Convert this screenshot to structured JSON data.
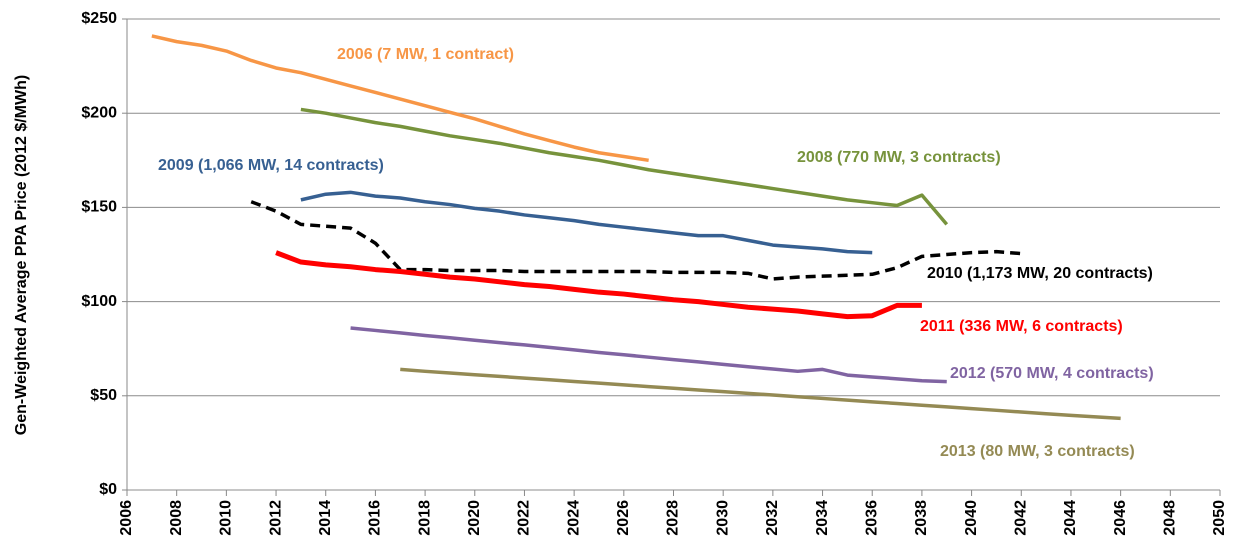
{
  "chart_data": {
    "type": "line",
    "y_label": "Gen-Weighted Average PPA Price (2012 $/MWh)",
    "xlim": [
      2006,
      2050
    ],
    "xticks": [
      2006,
      2008,
      2010,
      2012,
      2014,
      2016,
      2018,
      2020,
      2022,
      2024,
      2026,
      2028,
      2030,
      2032,
      2034,
      2036,
      2038,
      2040,
      2042,
      2044,
      2046,
      2048,
      2050
    ],
    "ylim": [
      0,
      250
    ],
    "yticks": [
      {
        "value": 0,
        "label": "$0"
      },
      {
        "value": 50,
        "label": "$50"
      },
      {
        "value": 100,
        "label": "$100"
      },
      {
        "value": 150,
        "label": "$150"
      },
      {
        "value": 200,
        "label": "$200"
      },
      {
        "value": 250,
        "label": "$250"
      }
    ],
    "grid": true,
    "series": [
      {
        "name": "2006 (7 MW, 1 contract)",
        "color": "#f79646",
        "line_style": "solid",
        "x": [
          2007,
          2008,
          2009,
          2010,
          2011,
          2012,
          2013,
          2014,
          2015,
          2016,
          2017,
          2018,
          2019,
          2020,
          2021,
          2022,
          2023,
          2024,
          2025,
          2026,
          2027
        ],
        "values": [
          241,
          238,
          236,
          233,
          228,
          224,
          221.5,
          218,
          214.5,
          211,
          207.5,
          204,
          200.5,
          197,
          193,
          189,
          185.5,
          182,
          179,
          177,
          175
        ]
      },
      {
        "name": "2008 (770 MW, 3 contracts)",
        "color": "#77933c",
        "line_style": "solid",
        "x": [
          2013,
          2014,
          2015,
          2016,
          2017,
          2018,
          2019,
          2020,
          2021,
          2022,
          2023,
          2024,
          2025,
          2026,
          2027,
          2028,
          2029,
          2030,
          2031,
          2032,
          2033,
          2034,
          2035,
          2036,
          2037,
          2038,
          2039
        ],
        "values": [
          202,
          200,
          197.5,
          195,
          193,
          190.5,
          188,
          186,
          184,
          181.5,
          179,
          177,
          175,
          172.5,
          170,
          168,
          166,
          164,
          162,
          160,
          158,
          156,
          154,
          152.5,
          151,
          156.5,
          141
        ]
      },
      {
        "name": "2009 (1,066 MW, 14 contracts)",
        "color": "#376092",
        "line_style": "solid",
        "x": [
          2013,
          2014,
          2015,
          2016,
          2017,
          2018,
          2019,
          2020,
          2021,
          2022,
          2023,
          2024,
          2025,
          2026,
          2027,
          2028,
          2029,
          2030,
          2031,
          2032,
          2033,
          2034,
          2035,
          2036
        ],
        "values": [
          154,
          157,
          158,
          156,
          155,
          153,
          151.5,
          149.5,
          148,
          146,
          144.5,
          143,
          141,
          139.5,
          138,
          136.5,
          135,
          135,
          132.5,
          130,
          129,
          128,
          126.5,
          126
        ]
      },
      {
        "name": "2010 (1,173 MW, 20 contracts)",
        "color": "#000000",
        "line_style": "dashed",
        "x": [
          2011,
          2012,
          2013,
          2014,
          2015,
          2016,
          2017,
          2018,
          2019,
          2020,
          2021,
          2022,
          2023,
          2024,
          2025,
          2026,
          2027,
          2028,
          2029,
          2030,
          2031,
          2032,
          2033,
          2034,
          2035,
          2036,
          2037,
          2038,
          2039,
          2040,
          2041,
          2042
        ],
        "values": [
          153,
          148,
          141,
          140,
          139,
          131,
          117,
          117,
          116.5,
          116.5,
          116.5,
          116,
          116,
          116,
          116,
          116,
          116,
          115.5,
          115.5,
          115.5,
          115,
          112,
          113,
          113.5,
          114,
          114.5,
          118,
          124,
          125,
          126,
          126.5,
          125.5
        ]
      },
      {
        "name": "2011 (336 MW, 6 contracts)",
        "color": "#ff0000",
        "line_style": "solid",
        "x": [
          2012,
          2013,
          2014,
          2015,
          2016,
          2017,
          2018,
          2019,
          2020,
          2021,
          2022,
          2023,
          2024,
          2025,
          2026,
          2027,
          2028,
          2029,
          2030,
          2031,
          2032,
          2033,
          2034,
          2035,
          2036,
          2037,
          2038
        ],
        "values": [
          126,
          121,
          119.5,
          118.5,
          117,
          116,
          114.5,
          113,
          112,
          110.5,
          109,
          108,
          106.5,
          105,
          104,
          102.5,
          101,
          100,
          98.5,
          97,
          96,
          95,
          93.5,
          92,
          92.5,
          98,
          98
        ]
      },
      {
        "name": "2012 (570 MW, 4 contracts)",
        "color": "#8064a2",
        "line_style": "solid",
        "x": [
          2015,
          2016,
          2017,
          2018,
          2019,
          2020,
          2021,
          2022,
          2023,
          2024,
          2025,
          2026,
          2027,
          2028,
          2029,
          2030,
          2031,
          2032,
          2033,
          2034,
          2035,
          2036,
          2037,
          2038,
          2039
        ],
        "values": [
          86,
          84.7,
          83.4,
          82,
          80.8,
          79.5,
          78.2,
          77,
          75.7,
          74.4,
          73,
          71.8,
          70.5,
          69.2,
          68,
          66.7,
          65.4,
          64.2,
          63,
          64,
          61,
          60,
          59,
          58,
          57.5
        ]
      },
      {
        "name": "2013 (80 MW, 3 contracts)",
        "color": "#948a54",
        "line_style": "solid",
        "x": [
          2017,
          2018,
          2019,
          2020,
          2021,
          2022,
          2023,
          2024,
          2025,
          2026,
          2027,
          2028,
          2029,
          2030,
          2031,
          2032,
          2033,
          2034,
          2035,
          2036,
          2037,
          2038,
          2039,
          2040,
          2041,
          2042,
          2043,
          2044,
          2045,
          2046
        ],
        "values": [
          64,
          63,
          62.1,
          61.2,
          60.3,
          59.4,
          58.5,
          57.6,
          56.7,
          55.8,
          54.9,
          54,
          53.1,
          52.2,
          51.3,
          50.4,
          49.5,
          48.6,
          47.7,
          46.8,
          45.9,
          45,
          44.1,
          43.2,
          42.3,
          41.4,
          40.5,
          39.6,
          38.8,
          38
        ]
      }
    ]
  }
}
